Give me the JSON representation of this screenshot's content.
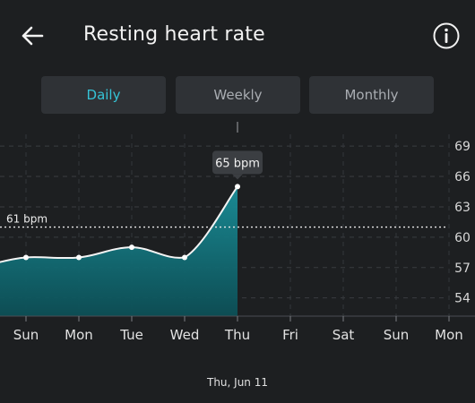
{
  "header": {
    "title": "Resting heart rate",
    "back_icon": "arrow-left-icon",
    "info_icon": "info-circle-icon"
  },
  "tabs": [
    {
      "label": "Daily",
      "active": true
    },
    {
      "label": "Weekly",
      "active": false
    },
    {
      "label": "Monthly",
      "active": false
    }
  ],
  "colors": {
    "accent": "#35c3d6",
    "area_fill": "#137a83",
    "background": "#1d1f21",
    "tab_background": "#2f3236"
  },
  "chart_data": {
    "type": "area",
    "categories": [
      "Sun",
      "Mon",
      "Tue",
      "Wed",
      "Thu",
      "Fri",
      "Sat",
      "Sun",
      "Mon"
    ],
    "values": [
      58,
      58,
      59,
      58,
      65,
      null,
      null,
      null,
      null
    ],
    "y_ticks": [
      54,
      57,
      60,
      63,
      66,
      69
    ],
    "ylim": [
      52.2,
      71.4
    ],
    "reference_line": {
      "value": 61,
      "label": "61 bpm"
    },
    "selected": {
      "index": 4,
      "tooltip": "65 bpm",
      "date_label": "Thu, Jun 11"
    },
    "grid": true,
    "y_axis_position": "right"
  }
}
